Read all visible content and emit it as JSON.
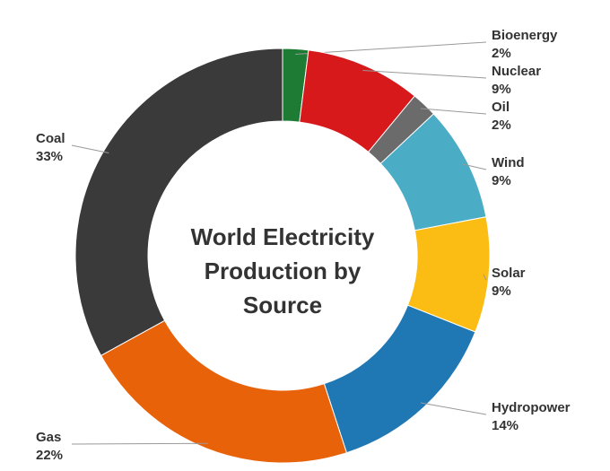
{
  "chart_data": {
    "type": "donut",
    "title": "World Electricity Production by Source",
    "categories": [
      "Bioenergy",
      "Nuclear",
      "Oil",
      "Wind",
      "Solar",
      "Hydropower",
      "Gas",
      "Coal"
    ],
    "values": [
      2,
      9,
      2,
      9,
      9,
      14,
      22,
      33
    ],
    "value_labels": [
      "2%",
      "9%",
      "2%",
      "9%",
      "9%",
      "14%",
      "22%",
      "33%"
    ],
    "colors": [
      "#1e7b34",
      "#d7191c",
      "#6b6b6b",
      "#4bacc6",
      "#fbbc14",
      "#1f77b4",
      "#e8620a",
      "#3a3a3a"
    ]
  }
}
